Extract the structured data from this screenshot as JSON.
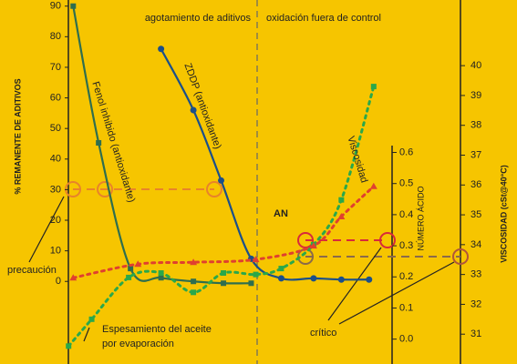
{
  "chart_data": {
    "type": "line",
    "y_label": "% REMANENTE DE ADITIVOS",
    "y2_label": "VISCOSIDAD (cSt@40°C)",
    "y3_label": "NÚMERO ÁCIDO",
    "xlim": [
      0,
      100
    ],
    "ylim": [
      -27,
      92
    ],
    "yticks": [
      0,
      10,
      20,
      30,
      40,
      50,
      60,
      70,
      80,
      90
    ],
    "y2lim": [
      30,
      42.2
    ],
    "y2ticks": [
      31,
      32,
      33,
      34,
      35,
      36,
      37,
      38,
      39,
      40
    ],
    "y3lim": [
      -0.08,
      1.09
    ],
    "y3ticks": [
      {
        "value": 0,
        "label": "0.0"
      },
      0.1,
      0.2,
      0.3,
      0.4,
      0.5,
      0.6
    ],
    "series": [
      {
        "name": "Fenol inhibido (antioxidante)",
        "color": "#2f6e4e",
        "marker": "square",
        "axis": "y",
        "x": [
          4,
          9.5,
          16.4,
          23,
          30,
          36.5,
          42.5
        ],
        "values": [
          90,
          45.3,
          4.2,
          1.2,
          0,
          -0.6,
          -0.6
        ]
      },
      {
        "name": "ZDDP (antioxidante)",
        "color": "#1b4f8a",
        "marker": "circle",
        "axis": "y",
        "x": [
          23,
          30,
          36,
          42.5,
          49,
          56,
          62,
          68
        ],
        "values": [
          76,
          56,
          33,
          7.4,
          1,
          1,
          0.6,
          0.6
        ]
      },
      {
        "name": "Viscosidad",
        "color": "#2aa84a",
        "marker": "square",
        "axis": "y2",
        "x": [
          3,
          8,
          16,
          23,
          30,
          36.5,
          43.5,
          49,
          56,
          62,
          69
        ],
        "values": [
          30.6,
          31.5,
          32.9,
          33.05,
          32.4,
          33.05,
          33.0,
          33.2,
          34.0,
          35.5,
          39.3
        ]
      },
      {
        "name": "AN",
        "color": "#e0402f",
        "marker": "triangle",
        "axis": "y3",
        "x": [
          4,
          18,
          30,
          43.5,
          56,
          62,
          69
        ],
        "values": [
          0.197,
          0.241,
          0.247,
          0.256,
          0.3,
          0.394,
          0.491
        ]
      }
    ],
    "annotations": [
      "precaución",
      "crítico",
      "Espesamiento del aceite",
      "por evaporación",
      "agotamiento de aditivos",
      "oxidación fuera de control"
    ]
  }
}
